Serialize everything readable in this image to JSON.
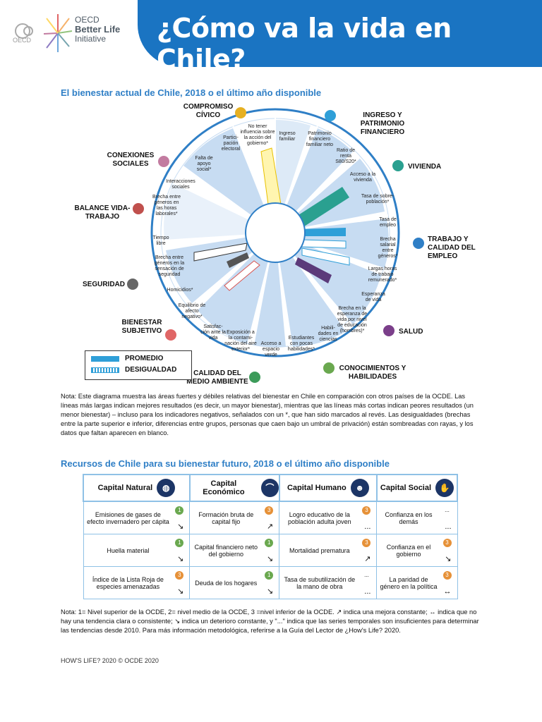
{
  "header": {
    "title": "¿Cómo va la vida en Chile?",
    "logo_oecd": "OECD",
    "logo_bli_1": "OECD",
    "logo_bli_2": "Better Life",
    "logo_bli_3": "Initiative"
  },
  "section1": {
    "title": "El bienestar actual de Chile, 2018 o el último año disponible"
  },
  "wheel": {
    "dimensions": [
      "COMPROMISO CÍVICO",
      "INGRESO Y PATRIMONIO FINANCIERO",
      "VIVIENDA",
      "TRABAJO Y CALIDAD DEL EMPLEO",
      "SALUD",
      "CONOCIMIENTOS Y HABILIDADES",
      "CALIDAD DEL MEDIO AMBIENTE",
      "BIENESTAR SUBJETIVO",
      "SEGURIDAD",
      "BALANCE VIDA-TRABAJO",
      "CONEXIONES SOCIALES"
    ],
    "indicators": [
      "No tener influencia sobre la acción del gobierno*",
      "Ingreso familiar",
      "Patrimonio financiero familiar neto",
      "Ratio de renta S80/S20*",
      "Acceso a la vivienda",
      "Tasa de sobre-población*",
      "Tasa de empleo",
      "Brecha salarial entre géneros*",
      "Largas horas de trabajo remunerado*",
      "Esperanza de vida",
      "Brecha en la esperanza de vida por nivel de educación (hombres)*",
      "Estudiantes con pocas habilidades*",
      "Habili-dades en ciencias",
      "Acceso a espacio verde",
      "Exposición a la contami-nación del aire exterior*",
      "Satisfac-ción ante la vida",
      "Equilibrio de afecto negativo*",
      "Homicidios*",
      "Brecha entre géneros en la sensación de seguridad",
      "Tiempo libre",
      "Brecha entre géneros en las horas laborales*",
      "Interacciones sociales",
      "Falta de apoyo social*",
      "Partici-pación electoral"
    ]
  },
  "legend": {
    "average": "PROMEDIO",
    "inequality": "DESIGUALDAD"
  },
  "note1": "Nota: Este diagrama muestra las áreas fuertes y débiles relativas del bienestar en Chile en comparación con otros países de la OCDE. Las líneas más largas indican mejores resultados (es decir, un mayor bienestar), mientras que las líneas más cortas indican peores resultados (un menor bienestar) – incluso para los indicadores negativos, señalados con un *, que han sido marcados al revés. Las desigualdades (brechas entre la parte superior e inferior, diferencias entre grupos, personas que caen bajo un umbral de privación) están sombreadas con rayas, y los datos que faltan aparecen en blanco.",
  "section2": {
    "title": "Recursos de Chile para su bienestar futuro, 2018 o el último año disponible"
  },
  "capitals": {
    "headers": [
      "Capital Natural",
      "Capital Económico",
      "Capital Humano",
      "Capital Social"
    ],
    "rows": [
      [
        {
          "text": "Emisiones de gases de efecto invernadero per cápita",
          "badge": "1",
          "trend": "↘"
        },
        {
          "text": "Formación bruta de capital fijo",
          "badge": "3",
          "trend": "↗"
        },
        {
          "text": "Logro educativo de la población adulta joven",
          "badge": "3",
          "trend": "..."
        },
        {
          "text": "Confianza en los demás",
          "badge": "...",
          "trend": "..."
        }
      ],
      [
        {
          "text": "Huella material",
          "badge": "1",
          "trend": "↘"
        },
        {
          "text": "Capital financiero neto del gobierno",
          "badge": "1",
          "trend": "↘"
        },
        {
          "text": "Mortalidad prematura",
          "badge": "3",
          "trend": "↗"
        },
        {
          "text": "Confianza en el gobierno",
          "badge": "3",
          "trend": "↘"
        }
      ],
      [
        {
          "text": "Índice de la Lista Roja de especies amenazadas",
          "badge": "3",
          "trend": "↘"
        },
        {
          "text": "Deuda de los hogares",
          "badge": "1",
          "trend": "↘"
        },
        {
          "text": "Tasa de subutilización de la mano de obra",
          "badge": "...",
          "trend": "..."
        },
        {
          "text": "La paridad de género en la política",
          "badge": "3",
          "trend": "↔"
        }
      ]
    ]
  },
  "note2": "Nota: 1= Nivel superior de la OCDE, 2= nivel medio de la OCDE, 3 =nivel inferior de la OCDE. ↗ indica una mejora constante; ↔ indica que no hay una tendencia clara o consistente; ↘ indica un deterioro constante, y \"...\" indica que las series temporales son insuficientes para determinar las tendencias desde 2010. Para más información metodológica, referirse a la Guía del Lector de ¿How's Life? 2020.",
  "footer": "HOW'S LIFE? 2020 © OCDE 2020",
  "colors": {
    "blue": "#1a74c2",
    "bar": "#2f9fd8",
    "sector": "#c7dcf2"
  }
}
